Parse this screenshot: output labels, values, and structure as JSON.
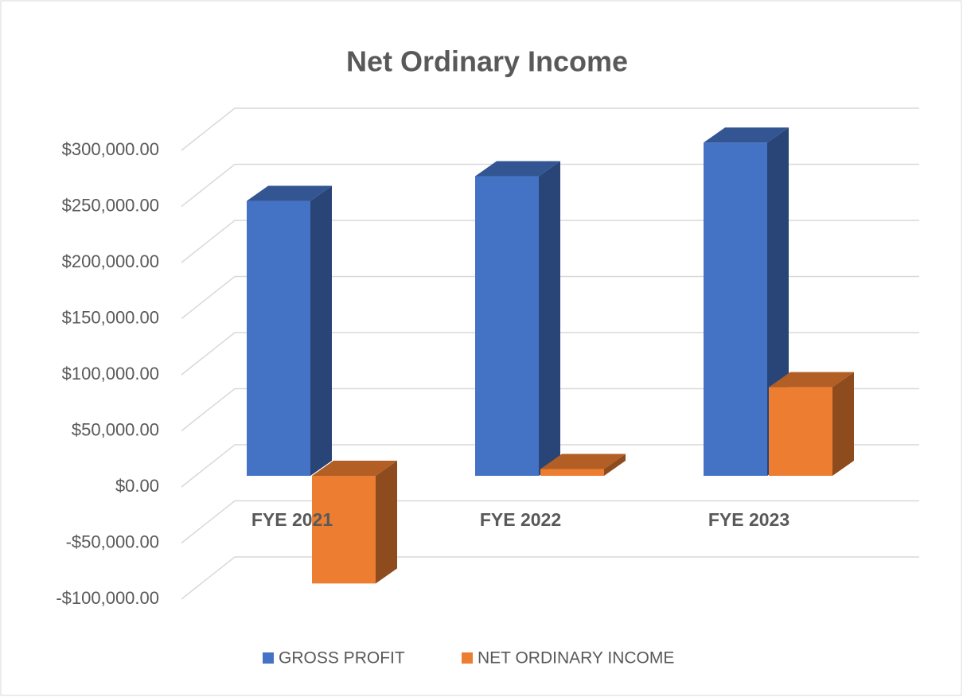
{
  "chart_data": {
    "type": "bar3d",
    "title": "Net Ordinary Income",
    "categories": [
      "FYE 2021",
      "FYE 2022",
      "FYE 2023"
    ],
    "series": [
      {
        "name": "GROSS PROFIT",
        "color": "#4472c4",
        "values": [
          245000,
          267000,
          297000
        ]
      },
      {
        "name": "NET ORDINARY INCOME",
        "color": "#ed7d31",
        "values": [
          -96000,
          6000,
          79000
        ]
      }
    ],
    "ylim": [
      -100000,
      300000
    ],
    "yticks": [
      {
        "value": -100000,
        "label": "-$100,000.00"
      },
      {
        "value": -50000,
        "label": "-$50,000.00"
      },
      {
        "value": 0,
        "label": "$0.00"
      },
      {
        "value": 50000,
        "label": "$50,000.00"
      },
      {
        "value": 100000,
        "label": "$100,000.00"
      },
      {
        "value": 150000,
        "label": "$150,000.00"
      },
      {
        "value": 200000,
        "label": "$200,000.00"
      },
      {
        "value": 250000,
        "label": "$250,000.00"
      },
      {
        "value": 300000,
        "label": "$300,000.00"
      }
    ],
    "grid": true,
    "legend": "bottom"
  }
}
